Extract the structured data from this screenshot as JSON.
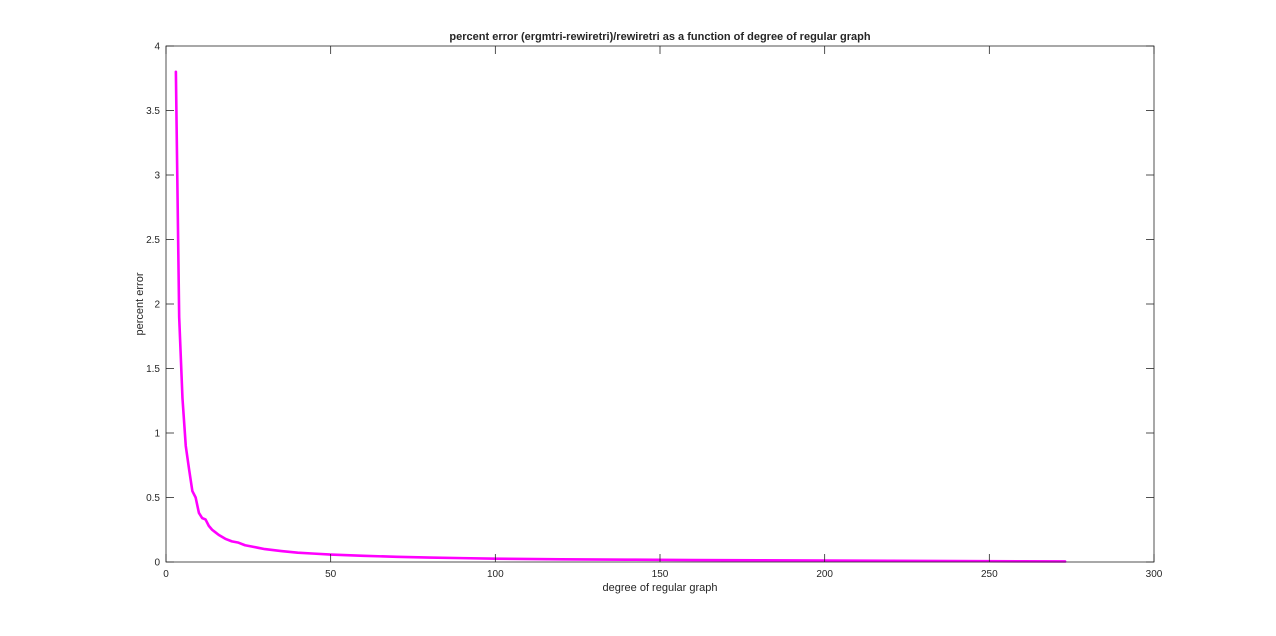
{
  "chart_data": {
    "type": "line",
    "title": "percent error (ergmtri-rewiretri)/rewiretri as a function of degree of regular graph",
    "xlabel": "degree of regular graph",
    "ylabel": "percent error",
    "xlim": [
      0,
      300
    ],
    "ylim": [
      0,
      4
    ],
    "xticks": [
      0,
      50,
      100,
      150,
      200,
      250,
      300
    ],
    "yticks": [
      0,
      0.5,
      1,
      1.5,
      2,
      2.5,
      3,
      3.5,
      4
    ],
    "xtick_labels": [
      "0",
      "50",
      "100",
      "150",
      "200",
      "250",
      "300"
    ],
    "ytick_labels": [
      "0",
      "0.5",
      "1",
      "1.5",
      "2",
      "2.5",
      "3",
      "3.5",
      "4"
    ],
    "grid": false,
    "legend": "none",
    "series": [
      {
        "color": "#ff00ff",
        "x": [
          3,
          4,
          5,
          6,
          7,
          8,
          9,
          10,
          11,
          12,
          13,
          14,
          15,
          16,
          18,
          20,
          22,
          24,
          26,
          28,
          30,
          35,
          40,
          45,
          50,
          60,
          70,
          80,
          90,
          100,
          120,
          140,
          160,
          180,
          200,
          220,
          240,
          260,
          273
        ],
        "y": [
          3.8,
          1.9,
          1.27,
          0.9,
          0.72,
          0.55,
          0.5,
          0.38,
          0.34,
          0.33,
          0.28,
          0.25,
          0.23,
          0.21,
          0.18,
          0.16,
          0.15,
          0.13,
          0.12,
          0.11,
          0.1,
          0.085,
          0.072,
          0.065,
          0.058,
          0.048,
          0.04,
          0.034,
          0.03,
          0.026,
          0.021,
          0.018,
          0.015,
          0.013,
          0.011,
          0.009,
          0.007,
          0.005,
          0.004
        ]
      }
    ]
  }
}
